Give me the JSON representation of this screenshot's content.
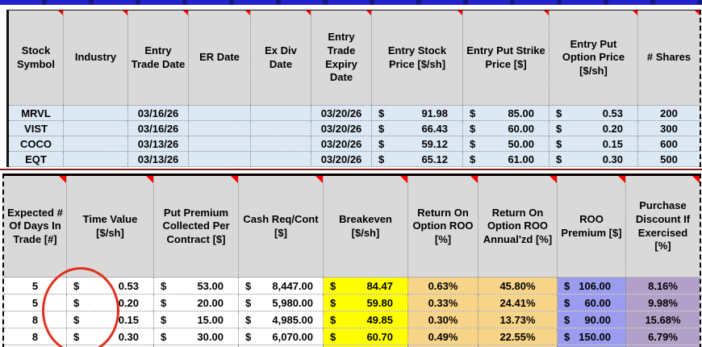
{
  "currency": "$",
  "colors": {
    "header_bg": "#d9d9d9",
    "stock_row_blue": "#dce9f4",
    "breakeven_yellow": "#ffff00",
    "roo_tan": "#f8d488",
    "premium_periwinkle": "#9b9bef",
    "discount_purple": "#b1a0c7",
    "top_bar_blue": "#2222cc",
    "separator_maroon": "#7b1f1f",
    "comment_flag_red": "#ff0000",
    "ellipse_red": "#e0301e"
  },
  "top_table": {
    "headers": {
      "symbol": "Stock Symbol",
      "industry": "Industry",
      "entry_date": "Entry Trade Date",
      "er_date": "ER Date",
      "ex_div_date": "Ex Div Date",
      "expiry_date": "Entry Trade Expiry Date",
      "stock_price": "Entry Stock Price [$/sh]",
      "strike_price": "Entry Put Strike Price [$]",
      "option_price": "Entry Put Option Price [$/sh]",
      "shares": "# Shares"
    },
    "rows": [
      {
        "symbol": "MRVL",
        "industry": "",
        "entry_date": "03/16/26",
        "er_date": "",
        "ex_div_date": "",
        "expiry_date": "03/20/26",
        "stock_price": "91.98",
        "strike_price": "85.00",
        "option_price": "0.53",
        "shares": "200"
      },
      {
        "symbol": "VIST",
        "industry": "",
        "entry_date": "03/16/26",
        "er_date": "",
        "ex_div_date": "",
        "expiry_date": "03/20/26",
        "stock_price": "66.43",
        "strike_price": "60.00",
        "option_price": "0.20",
        "shares": "300"
      },
      {
        "symbol": "COCO",
        "industry": "",
        "entry_date": "03/13/26",
        "er_date": "",
        "ex_div_date": "",
        "expiry_date": "03/20/26",
        "stock_price": "59.12",
        "strike_price": "50.00",
        "option_price": "0.15",
        "shares": "600"
      },
      {
        "symbol": "EQT",
        "industry": "",
        "entry_date": "03/13/26",
        "er_date": "",
        "ex_div_date": "",
        "expiry_date": "03/20/26",
        "stock_price": "65.12",
        "strike_price": "61.00",
        "option_price": "0.30",
        "shares": "500"
      }
    ]
  },
  "bottom_table": {
    "headers": {
      "days": "Expected # Of Days In Trade [#]",
      "time_value": "Time Value [$/sh]",
      "premium_per_contract": "Put Premium Collected Per Contract [$]",
      "cash_req": "Cash Req/Cont [$]",
      "breakeven": "Breakeven [$/sh]",
      "roo": "Return On Option ROO [%]",
      "roo_annualized": "Return On Option ROO Annual'zd [%]",
      "roo_premium": "ROO Premium [$]",
      "discount": "Purchase Discount If Exercised [%]"
    },
    "rows": [
      {
        "days": "5",
        "time_value": "0.53",
        "premium_per_contract": "53.00",
        "cash_req": "8,447.00",
        "breakeven": "84.47",
        "roo": "0.63%",
        "roo_annualized": "45.80%",
        "roo_premium": "106.00",
        "discount": "8.16%"
      },
      {
        "days": "5",
        "time_value": "0.20",
        "premium_per_contract": "20.00",
        "cash_req": "5,980.00",
        "breakeven": "59.80",
        "roo": "0.33%",
        "roo_annualized": "24.41%",
        "roo_premium": "60.00",
        "discount": "9.98%"
      },
      {
        "days": "8",
        "time_value": "0.15",
        "premium_per_contract": "15.00",
        "cash_req": "4,985.00",
        "breakeven": "49.85",
        "roo": "0.30%",
        "roo_annualized": "13.73%",
        "roo_premium": "90.00",
        "discount": "15.68%"
      },
      {
        "days": "8",
        "time_value": "0.30",
        "premium_per_contract": "30.00",
        "cash_req": "6,070.00",
        "breakeven": "60.70",
        "roo": "0.49%",
        "roo_annualized": "22.55%",
        "roo_premium": "150.00",
        "discount": "6.79%"
      }
    ]
  },
  "annotation": {
    "type": "red-ellipse",
    "target": "expected-days-in-trade-values"
  }
}
